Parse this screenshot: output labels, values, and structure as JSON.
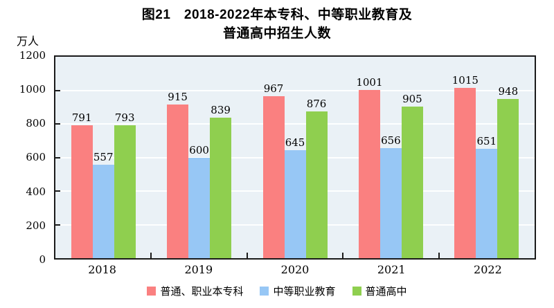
{
  "title": {
    "line1": "图21　2018-2022年本专科、中等职业教育及",
    "line2": "普通高中招生人数"
  },
  "chart_data": {
    "type": "bar",
    "unit_label": "万人",
    "categories": [
      "2018",
      "2019",
      "2020",
      "2021",
      "2022"
    ],
    "series": [
      {
        "name": "普通、职业本专科",
        "color": "#FA8080",
        "values": [
          791,
          915,
          967,
          1001,
          1015
        ]
      },
      {
        "name": "中等职业教育",
        "color": "#97C7F5",
        "values": [
          557,
          600,
          645,
          656,
          651
        ]
      },
      {
        "name": "普通高中",
        "color": "#8FCF4F",
        "values": [
          793,
          839,
          876,
          905,
          948
        ]
      }
    ],
    "ylim": [
      0,
      1200
    ],
    "yticks": [
      1200,
      1000,
      800,
      600,
      400,
      200,
      0
    ],
    "ylabel": "万人",
    "xlabel": "",
    "grid": "horizontal",
    "gridline_color": "#FFFFFF",
    "plot_background": "#EAF1F6",
    "axis_color": "#1A1A1A",
    "legend_position": "bottom"
  }
}
